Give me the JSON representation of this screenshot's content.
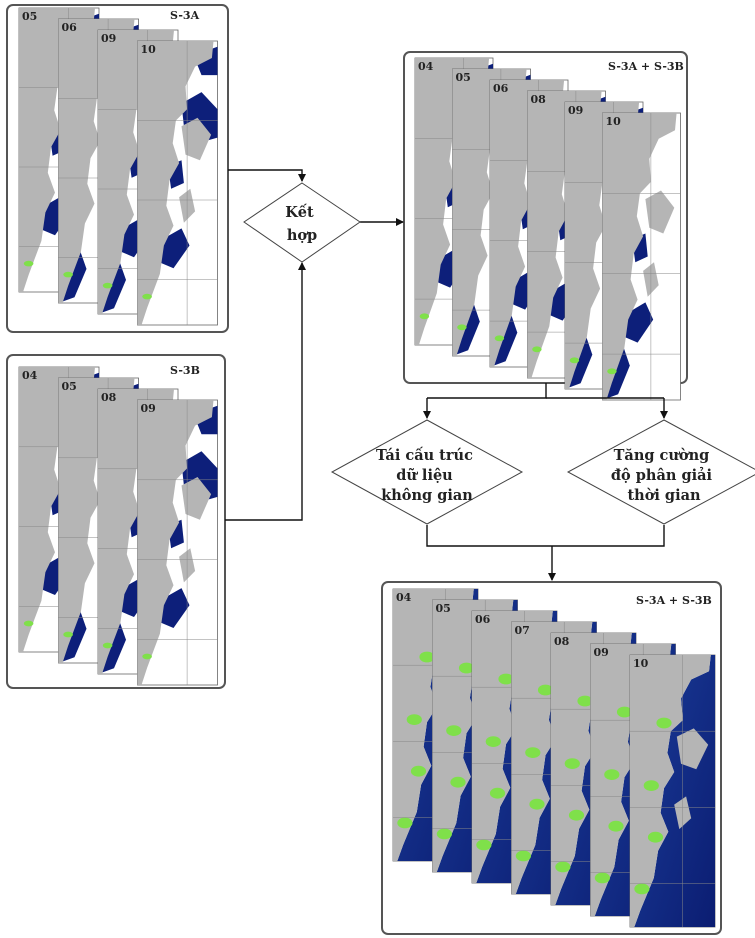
{
  "panels": {
    "s3a": {
      "label": "S-3A",
      "days": [
        "05",
        "06",
        "09",
        "10"
      ]
    },
    "s3b": {
      "label": "S-3B",
      "days": [
        "04",
        "05",
        "08",
        "09"
      ]
    },
    "merged": {
      "label": "S-3A + S-3B",
      "days": [
        "04",
        "05",
        "06",
        "08",
        "09",
        "10"
      ]
    },
    "final": {
      "label": "S-3A + S-3B",
      "days": [
        "04",
        "05",
        "06",
        "07",
        "08",
        "09",
        "10"
      ]
    }
  },
  "steps": {
    "combine": {
      "lines": [
        "Kết",
        "hợp"
      ]
    },
    "spatial": {
      "lines": [
        "Tái cấu trúc",
        "dữ liệu",
        "không gian"
      ]
    },
    "temporal": {
      "lines": [
        "Tăng cường",
        "độ phân giải",
        "thời gian"
      ]
    }
  },
  "colors": {
    "land": "#b5b5b5",
    "cloud": "#ffffff",
    "water": "#0d1f7a",
    "water_filled": "#1c3a94",
    "coastal_high": "#7fe04a",
    "frame": "#555555"
  }
}
